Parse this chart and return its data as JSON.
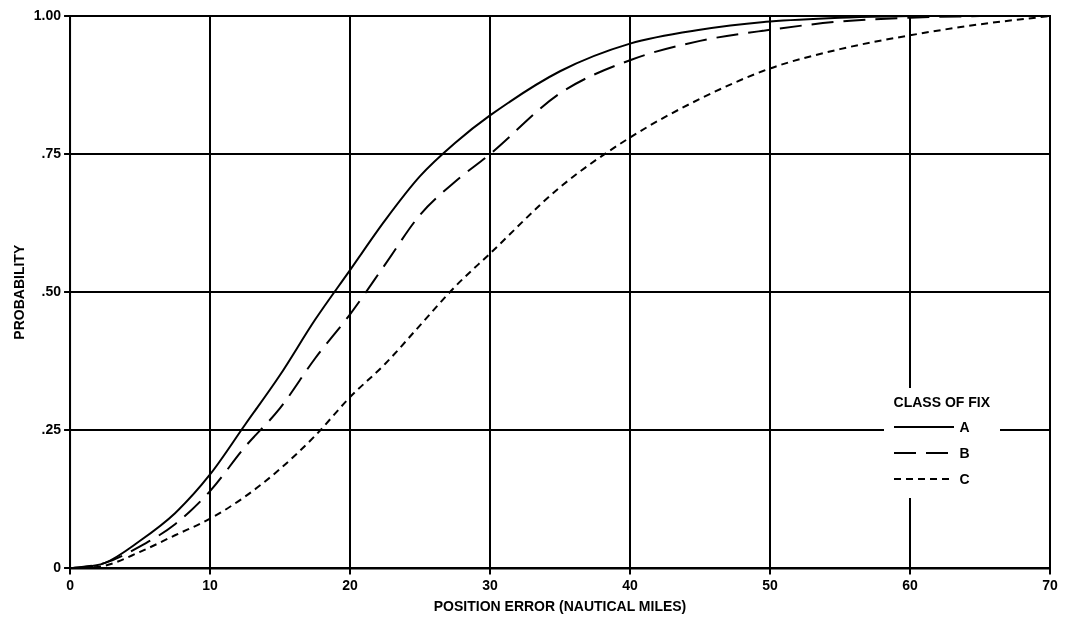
{
  "chart_data": {
    "type": "line",
    "xlabel": "POSITION ERROR (NAUTICAL MILES)",
    "ylabel": "PROBABILITY",
    "legend_title": "CLASS OF FIX",
    "xlim": [
      0,
      70
    ],
    "xticks": [
      0,
      10,
      20,
      30,
      40,
      50,
      60,
      70
    ],
    "ylim": [
      0,
      1
    ],
    "yticks": [
      0,
      {
        "value": 0.25,
        "label": ".25"
      },
      {
        "value": 0.5,
        "label": ".50"
      },
      {
        "value": 0.75,
        "label": ".75"
      },
      {
        "value": 1,
        "label": "1.00"
      }
    ],
    "grid": true,
    "legend": "bottom right",
    "marker": "none",
    "x": [
      0,
      2.5,
      5,
      7.5,
      10,
      12.5,
      15,
      17.5,
      20,
      22.5,
      25,
      27.5,
      30,
      35,
      40,
      45,
      50,
      55,
      60,
      65,
      70
    ],
    "series": [
      {
        "name": "A",
        "color": "#000000",
        "line_style": "solid",
        "x": [
          0,
          2.5,
          5,
          7.5,
          10,
          12.5,
          15,
          17.5,
          20,
          22.5,
          25,
          27.5,
          30,
          35,
          40,
          45,
          50,
          55,
          60
        ],
        "values": [
          0,
          0.01,
          0.05,
          0.1,
          0.17,
          0.26,
          0.35,
          0.45,
          0.54,
          0.63,
          0.71,
          0.77,
          0.82,
          0.9,
          0.95,
          0.975,
          0.99,
          0.997,
          1
        ]
      },
      {
        "name": "B",
        "color": "#000000",
        "line_style": "dashed",
        "x": [
          0,
          2.5,
          5,
          7.5,
          10,
          12.5,
          15,
          17.5,
          20,
          22.5,
          25,
          27.5,
          30,
          35,
          40,
          45,
          50,
          55,
          60,
          65
        ],
        "values": [
          0,
          0.01,
          0.04,
          0.08,
          0.14,
          0.22,
          0.29,
          0.38,
          0.46,
          0.55,
          0.64,
          0.7,
          0.75,
          0.86,
          0.92,
          0.955,
          0.975,
          0.99,
          0.997,
          1
        ]
      },
      {
        "name": "C",
        "color": "#000000",
        "line_style": "dotted",
        "values": [
          0,
          0.005,
          0.03,
          0.06,
          0.09,
          0.13,
          0.18,
          0.24,
          0.31,
          0.37,
          0.44,
          0.51,
          0.57,
          0.69,
          0.78,
          0.85,
          0.905,
          0.94,
          0.965,
          0.985,
          1
        ]
      }
    ]
  }
}
